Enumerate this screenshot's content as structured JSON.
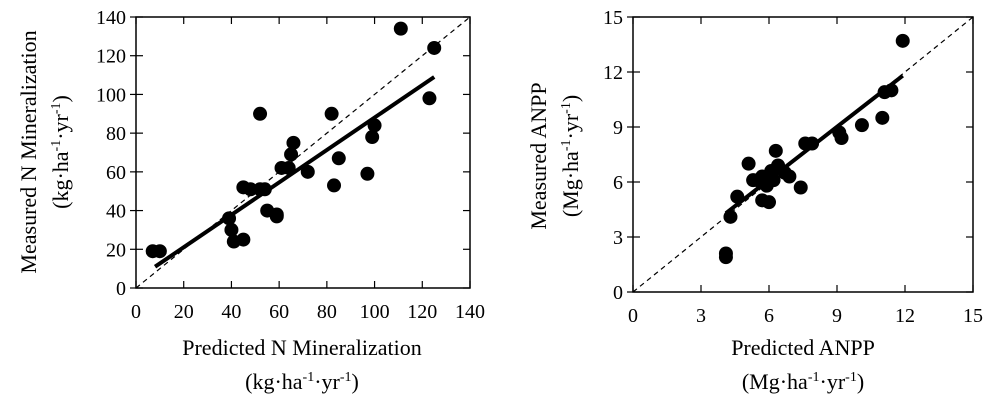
{
  "chart_data": [
    {
      "type": "scatter",
      "xlabel": "Predicted N Mineralization",
      "xunit": "(kg·ha⁻¹·yr⁻¹)",
      "ylabel": "Measured N Mineralization",
      "yunit": "(kg·ha⁻¹·yr⁻¹)",
      "xlim": [
        0,
        140
      ],
      "ylim": [
        0,
        140
      ],
      "xticks": [
        0,
        20,
        40,
        60,
        80,
        100,
        120,
        140
      ],
      "yticks": [
        0,
        20,
        40,
        60,
        80,
        100,
        120,
        140
      ],
      "one_to_one_line": true,
      "regression_line": {
        "x": [
          8,
          125
        ],
        "y": [
          11,
          109
        ]
      },
      "points": [
        {
          "x": 7,
          "y": 19
        },
        {
          "x": 10,
          "y": 19
        },
        {
          "x": 39,
          "y": 36
        },
        {
          "x": 40,
          "y": 30
        },
        {
          "x": 41,
          "y": 24
        },
        {
          "x": 45,
          "y": 25
        },
        {
          "x": 45,
          "y": 52
        },
        {
          "x": 48,
          "y": 51
        },
        {
          "x": 52,
          "y": 90
        },
        {
          "x": 52,
          "y": 51
        },
        {
          "x": 54,
          "y": 51
        },
        {
          "x": 55,
          "y": 40
        },
        {
          "x": 59,
          "y": 38
        },
        {
          "x": 59,
          "y": 37
        },
        {
          "x": 61,
          "y": 62
        },
        {
          "x": 64,
          "y": 62
        },
        {
          "x": 65,
          "y": 69
        },
        {
          "x": 66,
          "y": 75
        },
        {
          "x": 72,
          "y": 60
        },
        {
          "x": 82,
          "y": 90
        },
        {
          "x": 83,
          "y": 53
        },
        {
          "x": 85,
          "y": 67
        },
        {
          "x": 97,
          "y": 59
        },
        {
          "x": 99,
          "y": 78
        },
        {
          "x": 100,
          "y": 84
        },
        {
          "x": 111,
          "y": 134
        },
        {
          "x": 123,
          "y": 98
        },
        {
          "x": 125,
          "y": 124
        }
      ]
    },
    {
      "type": "scatter",
      "xlabel": "Predicted ANPP",
      "xunit": "(Mg·ha⁻¹·yr⁻¹)",
      "ylabel": "Measured ANPP",
      "yunit": "(Mg·ha⁻¹·yr⁻¹)",
      "xlim": [
        0,
        15
      ],
      "ylim": [
        0,
        15
      ],
      "xticks": [
        0,
        3,
        6,
        9,
        12,
        15
      ],
      "yticks": [
        0,
        3,
        6,
        9,
        12,
        15
      ],
      "one_to_one_line": true,
      "regression_line": {
        "x": [
          4.1,
          11.9
        ],
        "y": [
          4.3,
          11.8
        ]
      },
      "points": [
        {
          "x": 4.1,
          "y": 2.1
        },
        {
          "x": 4.1,
          "y": 1.9
        },
        {
          "x": 4.3,
          "y": 4.1
        },
        {
          "x": 4.6,
          "y": 5.2
        },
        {
          "x": 5.1,
          "y": 7.0
        },
        {
          "x": 5.3,
          "y": 6.1
        },
        {
          "x": 5.5,
          "y": 6.1
        },
        {
          "x": 5.7,
          "y": 5.0
        },
        {
          "x": 5.7,
          "y": 6.3
        },
        {
          "x": 5.9,
          "y": 5.8
        },
        {
          "x": 6.0,
          "y": 4.9
        },
        {
          "x": 6.1,
          "y": 6.6
        },
        {
          "x": 6.2,
          "y": 6.1
        },
        {
          "x": 6.3,
          "y": 7.7
        },
        {
          "x": 6.4,
          "y": 6.9
        },
        {
          "x": 6.7,
          "y": 6.5
        },
        {
          "x": 6.9,
          "y": 6.3
        },
        {
          "x": 7.4,
          "y": 5.7
        },
        {
          "x": 7.6,
          "y": 8.1
        },
        {
          "x": 7.9,
          "y": 8.1
        },
        {
          "x": 9.1,
          "y": 8.7
        },
        {
          "x": 9.2,
          "y": 8.4
        },
        {
          "x": 10.1,
          "y": 9.1
        },
        {
          "x": 11.0,
          "y": 9.5
        },
        {
          "x": 11.1,
          "y": 10.9
        },
        {
          "x": 11.4,
          "y": 11.0
        },
        {
          "x": 11.9,
          "y": 13.7
        }
      ]
    }
  ]
}
